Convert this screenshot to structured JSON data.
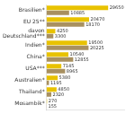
{
  "chart_data": {
    "type": "bar",
    "orientation": "horizontal",
    "categories": [
      "Brasilien*",
      "EU 25**",
      "davon\nDeutschland***",
      "Indien*",
      "China*",
      "USA***",
      "Australien*",
      "Thailand*",
      "Mosambik*"
    ],
    "series": [
      {
        "color": "#e8c200",
        "values": [
          29650,
          20470,
          4250,
          19500,
          10540,
          7145,
          5380,
          4850,
          270
        ]
      },
      {
        "color": "#a89060",
        "values": [
          10885,
          18170,
          3300,
          20225,
          12855,
          8965,
          1195,
          2320,
          155
        ]
      }
    ],
    "xlim": [
      0,
      37359
    ],
    "grid": false,
    "data_labels": true,
    "tick_labels": "y"
  }
}
